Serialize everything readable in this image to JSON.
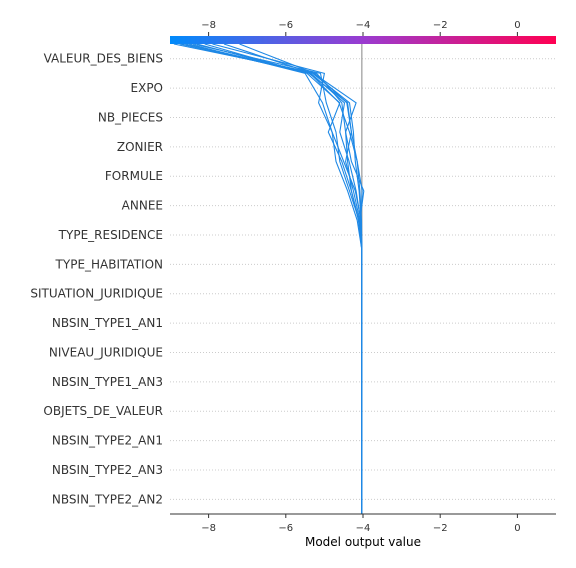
{
  "chart_data": {
    "type": "line",
    "subtype": "shap-decision-plot",
    "xlabel": "Model output value",
    "xlim": [
      -9.0,
      1.0
    ],
    "xticks": [
      -8,
      -6,
      -4,
      -2,
      0
    ],
    "base_value": -4.03,
    "features": [
      "VALEUR_DES_BIENS",
      "EXPO",
      "NB_PIECES",
      "ZONIER",
      "FORMULE",
      "ANNEE",
      "TYPE_RESIDENCE",
      "TYPE_HABITATION",
      "SITUATION_JURIDIQUE",
      "NBSIN_TYPE1_AN1",
      "NIVEAU_JURIDIQUE",
      "NBSIN_TYPE1_AN3",
      "OBJETS_DE_VALEUR",
      "NBSIN_TYPE2_AN1",
      "NBSIN_TYPE2_AN3",
      "NBSIN_TYPE2_AN2"
    ],
    "colorbar": {
      "from": "#008bfb",
      "to": "#ff0052",
      "range": [
        -9.0,
        1.0
      ]
    },
    "line_color": "#1e88e5",
    "series": [
      {
        "values": [
          -4.03,
          -4.03,
          -4.03,
          -4.03,
          -4.03,
          -4.03,
          -4.03,
          -4.03,
          -4.03,
          -4.06,
          -4.02,
          -4.15,
          -4.35,
          -4.62,
          -5.37,
          -8.7
        ]
      },
      {
        "values": [
          -4.03,
          -4.03,
          -4.03,
          -4.03,
          -4.03,
          -4.03,
          -4.03,
          -4.03,
          -4.03,
          -4.08,
          -3.98,
          -4.3,
          -4.45,
          -4.18,
          -5.28,
          -8.6
        ]
      },
      {
        "values": [
          -4.03,
          -4.03,
          -4.03,
          -4.03,
          -4.03,
          -4.03,
          -4.03,
          -4.03,
          -4.03,
          -4.05,
          -4.2,
          -4.5,
          -4.8,
          -5.05,
          -5.5,
          -8.5
        ]
      },
      {
        "values": [
          -4.03,
          -4.03,
          -4.03,
          -4.03,
          -4.03,
          -4.03,
          -4.03,
          -4.03,
          -4.03,
          -4.1,
          -4.35,
          -4.6,
          -4.7,
          -4.95,
          -5.1,
          -8.4
        ]
      },
      {
        "values": [
          -4.03,
          -4.03,
          -4.03,
          -4.03,
          -4.03,
          -4.03,
          -4.03,
          -4.03,
          -4.03,
          -4.08,
          -4.25,
          -4.45,
          -4.3,
          -4.4,
          -5.4,
          -8.3
        ]
      },
      {
        "values": [
          -4.03,
          -4.03,
          -4.03,
          -4.03,
          -4.03,
          -4.03,
          -4.03,
          -4.03,
          -4.03,
          -4.12,
          -4.3,
          -4.4,
          -4.45,
          -4.55,
          -5.2,
          -8.9
        ]
      },
      {
        "values": [
          -4.03,
          -4.03,
          -4.03,
          -4.03,
          -4.03,
          -4.03,
          -4.03,
          -4.03,
          -4.03,
          -4.15,
          -4.4,
          -4.7,
          -4.8,
          -5.15,
          -5.0,
          -7.9
        ]
      },
      {
        "values": [
          -4.03,
          -4.03,
          -4.03,
          -4.03,
          -4.03,
          -4.03,
          -4.03,
          -4.03,
          -4.03,
          -4.05,
          -4.1,
          -4.2,
          -4.25,
          -4.35,
          -5.3,
          -7.6
        ]
      },
      {
        "values": [
          -4.03,
          -4.03,
          -4.03,
          -4.03,
          -4.03,
          -4.03,
          -4.03,
          -4.03,
          -4.03,
          -4.04,
          -4.08,
          -4.15,
          -4.3,
          -4.42,
          -5.25,
          -7.2
        ]
      },
      {
        "values": [
          -4.03,
          -4.03,
          -4.03,
          -4.03,
          -4.03,
          -4.03,
          -4.03,
          -4.03,
          -4.03,
          -4.1,
          -4.3,
          -4.55,
          -4.9,
          -4.6,
          -5.45,
          -8.1
        ]
      },
      {
        "values": [
          -4.03,
          -4.03,
          -4.03,
          -4.03,
          -4.03,
          -4.03,
          -4.03,
          -4.03,
          -4.03,
          -4.06,
          -4.18,
          -4.36,
          -4.6,
          -4.48,
          -5.35,
          -8.75
        ]
      }
    ]
  }
}
